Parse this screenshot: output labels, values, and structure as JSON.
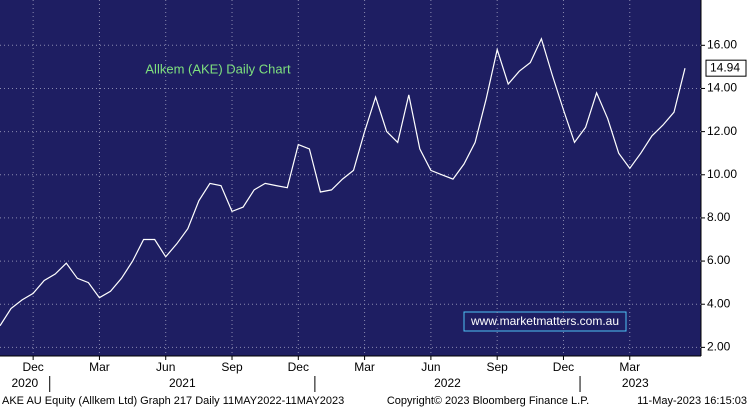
{
  "chart_data": {
    "type": "line",
    "annotation": "Allkem (AKE) Daily Chart",
    "watermark": "www.marketmatters.com.au",
    "footer": {
      "left": "AKE AU Equity (Allkem Ltd) Graph 217  Daily 11MAY2022-11MAY2023",
      "center": "Copyright© 2023 Bloomberg Finance L.P.",
      "right": "11-May-2023 16:15:03"
    },
    "categories": [
      null,
      null,
      null,
      "Dec",
      null,
      null,
      null,
      null,
      null,
      "Mar",
      null,
      null,
      null,
      null,
      null,
      "Jun",
      null,
      null,
      null,
      null,
      null,
      "Sep",
      null,
      null,
      null,
      null,
      null,
      "Dec",
      null,
      null,
      null,
      null,
      null,
      "Mar",
      null,
      null,
      null,
      null,
      null,
      "Jun",
      null,
      null,
      null,
      null,
      null,
      "Sep",
      null,
      null,
      null,
      null,
      null,
      "Dec",
      null,
      null,
      null,
      null,
      null,
      "Mar",
      null,
      null,
      null,
      null,
      null
    ],
    "year_groups": [
      {
        "label": "2020",
        "start": 0,
        "end": 4
      },
      {
        "label": "2021",
        "start": 5,
        "end": 28
      },
      {
        "label": "2022",
        "start": 29,
        "end": 52
      },
      {
        "label": "2023",
        "start": 53,
        "end": 62
      }
    ],
    "series": [
      {
        "name": "AKE AU Equity",
        "color": "#ffffff",
        "values": [
          3.0,
          3.8,
          4.2,
          4.5,
          5.1,
          5.4,
          5.9,
          5.2,
          5.0,
          4.3,
          4.6,
          5.2,
          6.0,
          7.0,
          7.0,
          6.2,
          6.8,
          7.5,
          8.8,
          9.6,
          9.5,
          8.3,
          8.5,
          9.3,
          9.6,
          9.5,
          9.4,
          11.4,
          11.2,
          9.2,
          9.3,
          9.8,
          10.2,
          12.0,
          13.6,
          12.0,
          11.5,
          13.7,
          11.2,
          10.2,
          10.0,
          9.8,
          10.5,
          11.5,
          13.5,
          15.8,
          14.2,
          14.8,
          15.2,
          16.3,
          14.6,
          13.0,
          11.5,
          12.2,
          13.8,
          12.6,
          11.0,
          10.3,
          11.0,
          11.8,
          12.3,
          12.9,
          14.94
        ]
      }
    ],
    "last_price": {
      "value": 14.94,
      "label": "14.94"
    },
    "ylim": [
      1.6,
      18.1
    ],
    "yticks": [
      {
        "value": 2,
        "label": "2.00"
      },
      {
        "value": 4,
        "label": "4.00"
      },
      {
        "value": 6,
        "label": "6.00"
      },
      {
        "value": 8,
        "label": "8.00"
      },
      {
        "value": 10,
        "label": "10.00"
      },
      {
        "value": 12,
        "label": "12.00"
      },
      {
        "value": 14,
        "label": "14.00"
      },
      {
        "value": 16,
        "label": "16.00"
      }
    ],
    "grid": true
  }
}
